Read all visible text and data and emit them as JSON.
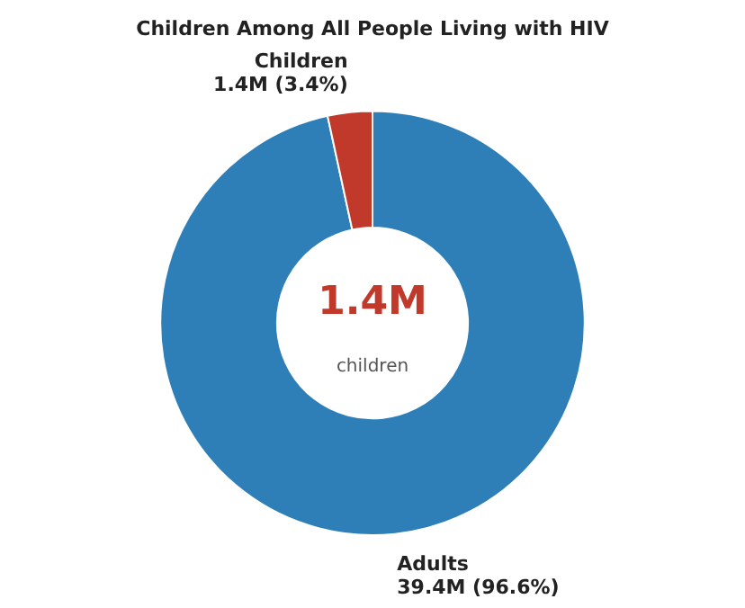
{
  "chart_data": {
    "type": "donut",
    "title": "Children Among All People Living with HIV",
    "categories": [
      "Adults",
      "Children"
    ],
    "values": [
      96.6,
      3.4
    ],
    "value_labels": [
      "39.4M (96.6%)",
      "1.4M (3.4%)"
    ],
    "colors": [
      "#2e7fb8",
      "#c0392b"
    ],
    "annotations": [
      "1.4M",
      "children"
    ],
    "legend": false
  }
}
